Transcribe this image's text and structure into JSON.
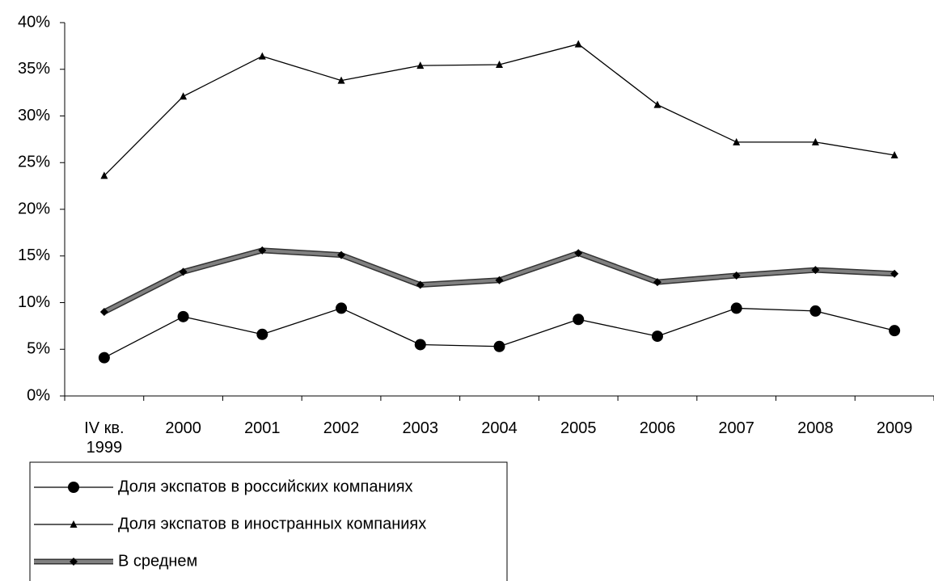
{
  "chart_data": {
    "type": "line",
    "categories": [
      "IV кв. 1999",
      "2000",
      "2001",
      "2002",
      "2003",
      "2004",
      "2005",
      "2006",
      "2007",
      "2008",
      "2009"
    ],
    "series": [
      {
        "name": "Доля экспатов в российских компаниях",
        "color": "#000000",
        "marker": "circle",
        "values": [
          4.1,
          8.5,
          6.6,
          9.4,
          5.5,
          5.3,
          8.2,
          6.4,
          9.4,
          9.1,
          7.0
        ]
      },
      {
        "name": "Доля экспатов в иностранных компаниях",
        "color": "#000000",
        "marker": "triangle",
        "values": [
          23.6,
          32.1,
          36.4,
          33.8,
          35.4,
          35.5,
          37.7,
          31.2,
          27.2,
          27.2,
          25.8
        ]
      },
      {
        "name": "В среднем",
        "color": "#808080",
        "marker": "diamond",
        "values": [
          9.0,
          13.3,
          15.6,
          15.1,
          11.9,
          12.4,
          15.3,
          12.2,
          12.9,
          13.5,
          13.1
        ]
      }
    ],
    "ylim": [
      0,
      40
    ],
    "yticks": [
      {
        "value": 0,
        "label": "0%"
      },
      {
        "value": 5,
        "label": "5%"
      },
      {
        "value": 10,
        "label": "10%"
      },
      {
        "value": 15,
        "label": "15%"
      },
      {
        "value": 20,
        "label": "20%"
      },
      {
        "value": 25,
        "label": "25%"
      },
      {
        "value": 30,
        "label": "30%"
      },
      {
        "value": 35,
        "label": "35%"
      },
      {
        "value": 40,
        "label": "40%"
      }
    ],
    "grid": false,
    "legend": "bottom-left"
  }
}
